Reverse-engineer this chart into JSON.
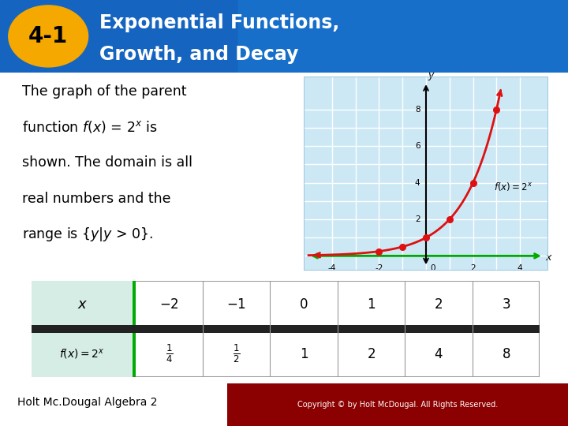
{
  "title_line1": "Exponential Functions,",
  "title_line2": "Growth, and Decay",
  "badge_text": "4-1",
  "header_bg": "#1565c0",
  "header_bg_right": "#1976d2",
  "badge_bg": "#f5a800",
  "body_bg": "#ffffff",
  "body_text_size": 12.5,
  "graph_bg": "#cce8f4",
  "graph_border": "#a0c8e0",
  "graph_line_color": "#dd1111",
  "graph_axis_x_color": "#00aa00",
  "graph_axis_y_color": "#000000",
  "graph_dot_color": "#dd1111",
  "xlim": [
    -5.2,
    5.2
  ],
  "ylim": [
    -0.8,
    9.8
  ],
  "data_x": [
    -2,
    -1,
    0,
    1,
    2,
    3
  ],
  "data_y": [
    0.25,
    0.5,
    1,
    2,
    4,
    8
  ],
  "table_header_bg": "#d5ede5",
  "table_border_color": "#999999",
  "table_green_col": "#00aa00",
  "footer_text": "Holt Mc.Dougal Algebra 2",
  "copyright_text": "Copyright © by Holt McDougal. All Rights Reserved.",
  "copyright_bg": "#8b0000"
}
